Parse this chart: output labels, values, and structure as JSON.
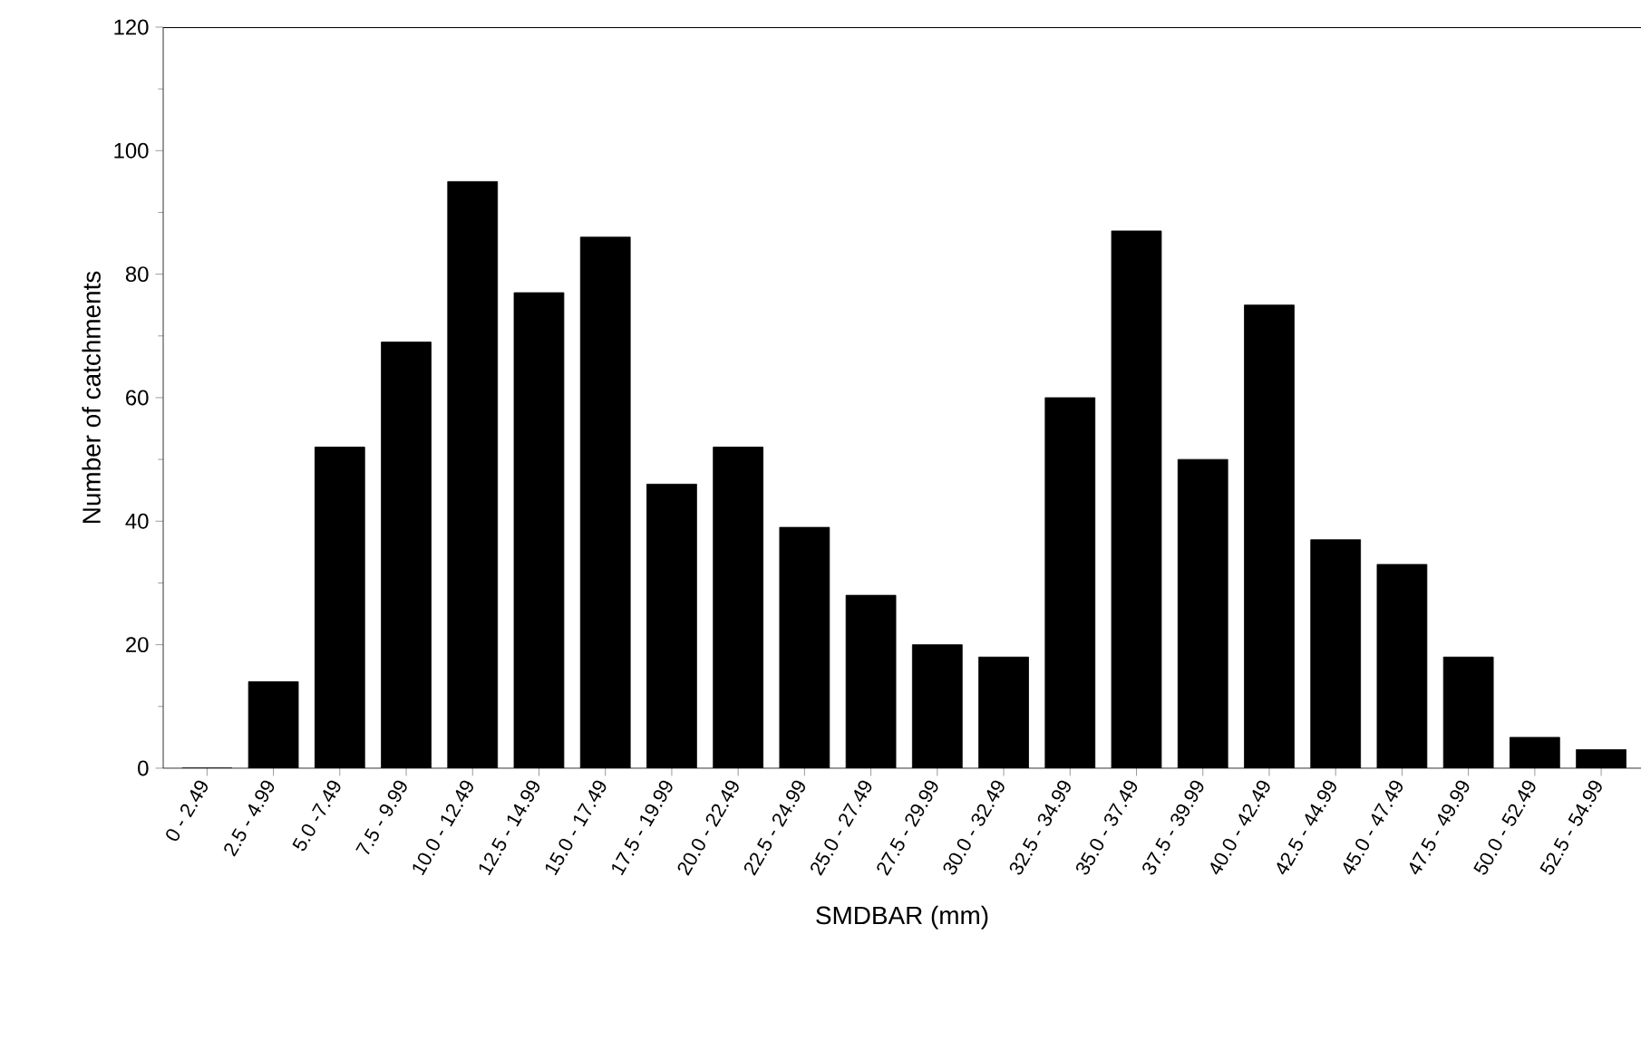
{
  "chart_data": {
    "type": "bar",
    "xlabel": "SMDBAR (mm)",
    "ylabel": "Number of catchments",
    "categories": [
      "0 - 2.49",
      "2.5 - 4.99",
      "5.0 -7.49",
      "7.5 - 9.99",
      "10.0 - 12.49",
      "12.5 - 14.99",
      "15.0 - 17.49",
      "17.5 - 19.99",
      "20.0 - 22.49",
      "22.5 - 24.99",
      "25.0 - 27.49",
      "27.5 - 29.99",
      "30.0 - 32.49",
      "32.5 - 34.99",
      "35.0 - 37.49",
      "37.5 - 39.99",
      "40.0 - 42.49",
      "42.5 - 44.99",
      "45.0 - 47.49",
      "47.5 - 49.99",
      "50.0 - 52.49",
      "52.5 - 54.99"
    ],
    "values": [
      0,
      14,
      52,
      69,
      95,
      77,
      86,
      46,
      52,
      39,
      28,
      20,
      18,
      60,
      87,
      50,
      75,
      37,
      33,
      18,
      5,
      3
    ],
    "color": "#000000",
    "ylim": [
      0,
      120
    ],
    "yticks": [
      0,
      20,
      40,
      60,
      80,
      100,
      120
    ],
    "grid": false
  }
}
